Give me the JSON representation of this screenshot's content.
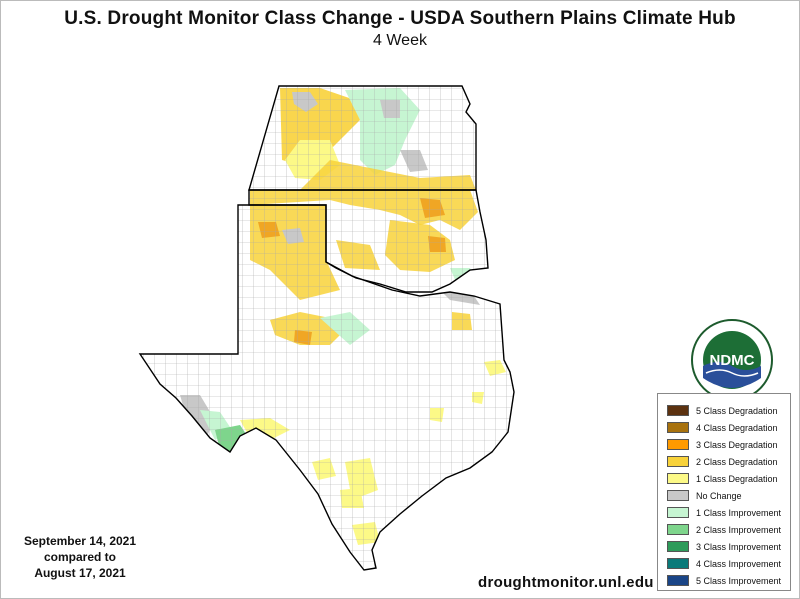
{
  "title": "U.S. Drought Monitor Class Change - USDA Southern Plains Climate Hub",
  "subtitle": "4 Week",
  "map": {
    "regions": [
      "Kansas",
      "Oklahoma",
      "Texas"
    ]
  },
  "legend": {
    "items": [
      {
        "label": "5 Class Degradation",
        "color": "#5c3210"
      },
      {
        "label": "4 Class Degradation",
        "color": "#a8720e"
      },
      {
        "label": "3 Class Degradation",
        "color": "#ff9a00"
      },
      {
        "label": "2 Class Degradation",
        "color": "#f8d23a"
      },
      {
        "label": "1 Class Degradation",
        "color": "#fcf987"
      },
      {
        "label": "No Change",
        "color": "#c8c8c8"
      },
      {
        "label": "1 Class Improvement",
        "color": "#c6f5d2"
      },
      {
        "label": "2 Class Improvement",
        "color": "#7ed58c"
      },
      {
        "label": "3 Class Improvement",
        "color": "#2e9b5a"
      },
      {
        "label": "4 Class Improvement",
        "color": "#0a7a7a"
      },
      {
        "label": "5 Class Improvement",
        "color": "#1a4587"
      }
    ]
  },
  "dates": {
    "line1": "September 14, 2021",
    "line2": "compared to",
    "line3": "August 17, 2021"
  },
  "website": "droughtmonitor.unl.edu",
  "logo": {
    "text": "NDMC",
    "ring_top": "NATIONAL DROUGHT MITIGATION CENTER",
    "ring_bottom": "UNIVERSITY OF NEBRASKA"
  }
}
